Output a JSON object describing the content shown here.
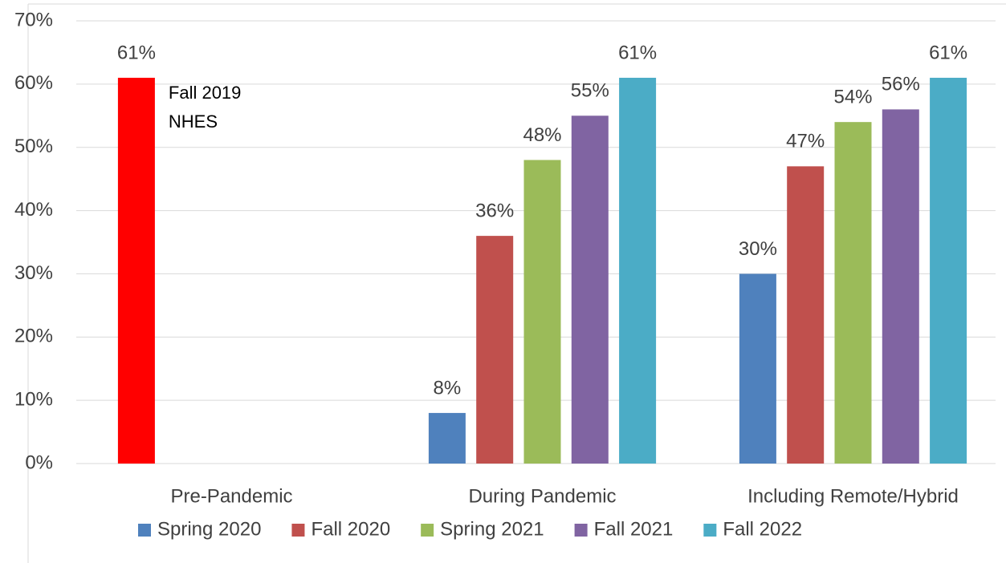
{
  "chart_data": {
    "type": "bar",
    "categories": [
      "Pre-Pandemic",
      "During Pandemic",
      "Including Remote/Hybrid"
    ],
    "series": [
      {
        "name": "Spring 2020",
        "color": "#4f81bd",
        "values": [
          null,
          8,
          30
        ],
        "value_labels": [
          null,
          "8%",
          "30%"
        ]
      },
      {
        "name": "Fall 2020",
        "color": "#c0504d",
        "values": [
          null,
          36,
          47
        ],
        "value_labels": [
          null,
          "36%",
          "47%"
        ]
      },
      {
        "name": "Spring 2021",
        "color": "#9bbb59",
        "values": [
          null,
          48,
          54
        ],
        "value_labels": [
          null,
          "48%",
          "54%"
        ]
      },
      {
        "name": "Fall 2021",
        "color": "#8064a2",
        "values": [
          null,
          55,
          56
        ],
        "value_labels": [
          null,
          "55%",
          "56%"
        ]
      },
      {
        "name": "Fall 2022",
        "color": "#4bacc6",
        "values": [
          null,
          61,
          61
        ],
        "value_labels": [
          null,
          "61%",
          "61%"
        ]
      }
    ],
    "extra_bar": {
      "category": 0,
      "color": "#ff0000",
      "value": 61,
      "value_label": "61%",
      "annotation": [
        "Fall 2019",
        "NHES"
      ]
    },
    "ylim": [
      0,
      70
    ],
    "yticks": [
      {
        "value": 0,
        "label": "0%"
      },
      {
        "value": 10,
        "label": "10%"
      },
      {
        "value": 20,
        "label": "20%"
      },
      {
        "value": 30,
        "label": "30%"
      },
      {
        "value": 40,
        "label": "40%"
      },
      {
        "value": 50,
        "label": "50%"
      },
      {
        "value": 60,
        "label": "60%"
      },
      {
        "value": 70,
        "label": "70%"
      }
    ],
    "grid": true,
    "legend": "bottom"
  }
}
